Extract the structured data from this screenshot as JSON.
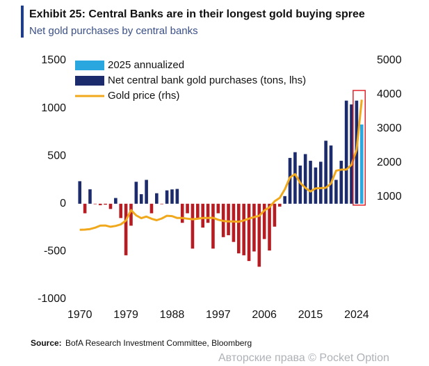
{
  "chart_data": {
    "type": "bar",
    "title": "Exhibit 25: Central Banks are in their longest gold buying spree",
    "subtitle": "Net gold purchases by central banks",
    "source_label": "Source:",
    "source": "BofA Research Investment Committee, Bloomberg",
    "watermark": "Авторские права © Pocket Option",
    "x": [
      1970,
      1971,
      1972,
      1973,
      1974,
      1975,
      1976,
      1977,
      1978,
      1979,
      1980,
      1981,
      1982,
      1983,
      1984,
      1985,
      1986,
      1987,
      1988,
      1989,
      1990,
      1991,
      1992,
      1993,
      1994,
      1995,
      1996,
      1997,
      1998,
      1999,
      2000,
      2001,
      2002,
      2003,
      2004,
      2005,
      2006,
      2007,
      2008,
      2009,
      2010,
      2011,
      2012,
      2013,
      2014,
      2015,
      2016,
      2017,
      2018,
      2019,
      2020,
      2021,
      2022,
      2023,
      2024,
      2025
    ],
    "xlim": [
      1968,
      2027
    ],
    "xticks": [
      1970,
      1979,
      1988,
      1997,
      2006,
      2015,
      2024
    ],
    "ylim": [
      -1000,
      1500
    ],
    "yticks": [
      1500,
      1000,
      500,
      0,
      -500,
      -1000
    ],
    "y2lim": [
      -2000,
      5000
    ],
    "y2ticks": [
      5000,
      4000,
      3000,
      2000,
      1000
    ],
    "grid": false,
    "legend": "top-left",
    "highlight_color": "#e0242b",
    "series": [
      {
        "name": "2025 annualized",
        "type": "bar",
        "color": "#2aa7df",
        "values": [
          null,
          null,
          null,
          null,
          null,
          null,
          null,
          null,
          null,
          null,
          null,
          null,
          null,
          null,
          null,
          null,
          null,
          null,
          null,
          null,
          null,
          null,
          null,
          null,
          null,
          null,
          null,
          null,
          null,
          null,
          null,
          null,
          null,
          null,
          null,
          null,
          null,
          null,
          null,
          null,
          null,
          null,
          null,
          null,
          null,
          null,
          null,
          null,
          null,
          null,
          null,
          null,
          null,
          null,
          null,
          830
        ]
      },
      {
        "name": "Net central bank gold purchases (tons, lhs)",
        "type": "bar",
        "color": "#1c2b6b",
        "negative_color": "#b71c22",
        "values": [
          236,
          -100,
          151,
          -5,
          -15,
          -10,
          -55,
          60,
          -150,
          -540,
          -230,
          230,
          100,
          250,
          -100,
          110,
          -5,
          140,
          150,
          155,
          -200,
          -100,
          -470,
          -150,
          -250,
          -200,
          -470,
          -100,
          -350,
          -330,
          -400,
          -520,
          -540,
          -600,
          -500,
          -660,
          -370,
          -490,
          -240,
          -30,
          80,
          480,
          540,
          400,
          520,
          450,
          380,
          440,
          660,
          610,
          250,
          450,
          1080,
          1040,
          1080,
          null
        ]
      },
      {
        "name": "Gold price (rhs)",
        "type": "line",
        "axis": "y2",
        "color": "#f0a81c",
        "values": [
          36,
          41,
          58,
          97,
          159,
          161,
          125,
          148,
          193,
          306,
          615,
          460,
          375,
          424,
          360,
          317,
          368,
          447,
          437,
          381,
          383,
          362,
          344,
          360,
          384,
          384,
          388,
          331,
          294,
          279,
          279,
          271,
          310,
          363,
          409,
          444,
          603,
          695,
          872,
          972,
          1225,
          1572,
          1669,
          1411,
          1266,
          1160,
          1251,
          1257,
          1268,
          1393,
          1770,
          1799,
          1800,
          1943,
          2386,
          3850
        ]
      }
    ]
  }
}
